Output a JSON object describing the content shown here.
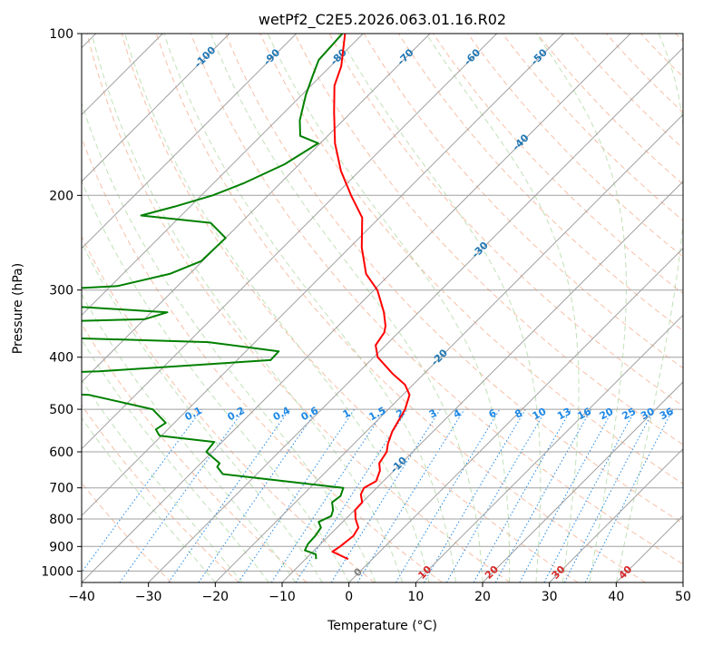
{
  "chart_data": {
    "type": "skew-t",
    "title": "wetPf2_C2E5.2026.063.01.16.R02",
    "xlabel": "Temperature (°C)",
    "ylabel": "Pressure (hPa)",
    "xlim": [
      -40,
      50
    ],
    "ylim_hpa": [
      1050,
      100
    ],
    "log_pressure_axis": true,
    "grid": true,
    "x_ticks": [
      -40,
      -30,
      -20,
      -10,
      0,
      10,
      20,
      30,
      40,
      50
    ],
    "x_tick_labels": [
      "−40",
      "−30",
      "−20",
      "−10",
      "0",
      "10",
      "20",
      "30",
      "40",
      "50"
    ],
    "y_ticks": [
      100,
      200,
      300,
      400,
      500,
      600,
      700,
      800,
      900,
      1000
    ],
    "y_tick_labels": [
      "100",
      "200",
      "300",
      "400",
      "500",
      "600",
      "700",
      "800",
      "900",
      "1000"
    ],
    "colors": {
      "temperature": "#ff0000",
      "dewpoint": "#008000",
      "isotherm": "#a0a0a0",
      "isobar": "#a0a0a0",
      "dry_adiabat": "#f4a582",
      "moist_adiabat": "#a6d49a",
      "mixing_ratio": "#1e88e5",
      "isotherm_label": "#1f77b4",
      "warm_isotherm_label": "#d62728",
      "zero_isotherm_label": "#808080",
      "frame": "#000000"
    },
    "isotherm_labels": [
      {
        "t": -100,
        "text": "-100"
      },
      {
        "t": -90,
        "text": "-90"
      },
      {
        "t": -80,
        "text": "-80"
      },
      {
        "t": -70,
        "text": "-70"
      },
      {
        "t": -60,
        "text": "-60"
      },
      {
        "t": -50,
        "text": "-50"
      },
      {
        "t": -40,
        "text": "-40"
      },
      {
        "t": -30,
        "text": "-30"
      },
      {
        "t": -20,
        "text": "-20"
      },
      {
        "t": -10,
        "text": "-10"
      },
      {
        "t": 0,
        "text": "0"
      },
      {
        "t": 10,
        "text": "10"
      },
      {
        "t": 20,
        "text": "20"
      },
      {
        "t": 30,
        "text": "30"
      },
      {
        "t": 40,
        "text": "40"
      }
    ],
    "mixing_ratio_labels": [
      {
        "w": 0.1,
        "text": "0.1"
      },
      {
        "w": 0.2,
        "text": "0.2"
      },
      {
        "w": 0.4,
        "text": "0.4"
      },
      {
        "w": 0.6,
        "text": "0.6"
      },
      {
        "w": 1,
        "text": "1"
      },
      {
        "w": 1.5,
        "text": "1.5"
      },
      {
        "w": 2,
        "text": "2"
      },
      {
        "w": 3,
        "text": "3"
      },
      {
        "w": 4,
        "text": "4"
      },
      {
        "w": 6,
        "text": "6"
      },
      {
        "w": 8,
        "text": "8"
      },
      {
        "w": 10,
        "text": "10"
      },
      {
        "w": 13,
        "text": "13"
      },
      {
        "w": 16,
        "text": "16"
      },
      {
        "w": 20,
        "text": "20"
      },
      {
        "w": 25,
        "text": "25"
      },
      {
        "w": 30,
        "text": "30"
      },
      {
        "w": 36,
        "text": "36"
      }
    ],
    "series": [
      {
        "key": "temperature",
        "points": [
          {
            "p": 950,
            "t": -3.6
          },
          {
            "p": 920,
            "t": -7.1
          },
          {
            "p": 900,
            "t": -6.7
          },
          {
            "p": 860,
            "t": -6.3
          },
          {
            "p": 830,
            "t": -6.8
          },
          {
            "p": 800,
            "t": -8.5
          },
          {
            "p": 770,
            "t": -9.9
          },
          {
            "p": 745,
            "t": -10.0
          },
          {
            "p": 720,
            "t": -11.4
          },
          {
            "p": 700,
            "t": -11.9
          },
          {
            "p": 680,
            "t": -11.1
          },
          {
            "p": 650,
            "t": -12.1
          },
          {
            "p": 630,
            "t": -13.3
          },
          {
            "p": 600,
            "t": -13.9
          },
          {
            "p": 580,
            "t": -14.9
          },
          {
            "p": 550,
            "t": -16.1
          },
          {
            "p": 500,
            "t": -17.5
          },
          {
            "p": 470,
            "t": -19.0
          },
          {
            "p": 450,
            "t": -21.2
          },
          {
            "p": 430,
            "t": -24.6
          },
          {
            "p": 400,
            "t": -29.4
          },
          {
            "p": 380,
            "t": -31.5
          },
          {
            "p": 360,
            "t": -32.1
          },
          {
            "p": 350,
            "t": -32.9
          },
          {
            "p": 330,
            "t": -35.2
          },
          {
            "p": 300,
            "t": -39.5
          },
          {
            "p": 280,
            "t": -43.6
          },
          {
            "p": 250,
            "t": -48.2
          },
          {
            "p": 220,
            "t": -52.6
          },
          {
            "p": 200,
            "t": -57.6
          },
          {
            "p": 180,
            "t": -62.8
          },
          {
            "p": 160,
            "t": -67.8
          },
          {
            "p": 140,
            "t": -72.6
          },
          {
            "p": 125,
            "t": -76.5
          },
          {
            "p": 115,
            "t": -78.4
          },
          {
            "p": 100,
            "t": -82.7
          }
        ]
      },
      {
        "key": "dewpoint",
        "points": [
          {
            "p": 950,
            "t": -8.4
          },
          {
            "p": 930,
            "t": -9.2
          },
          {
            "p": 915,
            "t": -11.4
          },
          {
            "p": 890,
            "t": -11.9
          },
          {
            "p": 860,
            "t": -12.0
          },
          {
            "p": 830,
            "t": -12.4
          },
          {
            "p": 810,
            "t": -13.6
          },
          {
            "p": 790,
            "t": -12.6
          },
          {
            "p": 770,
            "t": -13.2
          },
          {
            "p": 745,
            "t": -14.5
          },
          {
            "p": 725,
            "t": -14.2
          },
          {
            "p": 700,
            "t": -15.0
          },
          {
            "p": 660,
            "t": -35.1
          },
          {
            "p": 640,
            "t": -37.0
          },
          {
            "p": 630,
            "t": -37.2
          },
          {
            "p": 600,
            "t": -40.9
          },
          {
            "p": 575,
            "t": -41.2
          },
          {
            "p": 560,
            "t": -50.3
          },
          {
            "p": 545,
            "t": -51.8
          },
          {
            "p": 530,
            "t": -51.3
          },
          {
            "p": 500,
            "t": -55.3
          },
          {
            "p": 470,
            "t": -67.0
          },
          {
            "p": 460,
            "t": -85.0
          },
          {
            "p": 430,
            "t": -83.0
          },
          {
            "p": 425,
            "t": -69.0
          },
          {
            "p": 405,
            "t": -45.0
          },
          {
            "p": 390,
            "t": -45.1
          },
          {
            "p": 375,
            "t": -57.0
          },
          {
            "p": 365,
            "t": -90.0
          },
          {
            "p": 345,
            "t": -90.0
          },
          {
            "p": 340,
            "t": -70.0
          },
          {
            "p": 330,
            "t": -67.6
          },
          {
            "p": 320,
            "t": -86.0
          },
          {
            "p": 300,
            "t": -90.0
          },
          {
            "p": 295,
            "t": -79.0
          },
          {
            "p": 280,
            "t": -73.0
          },
          {
            "p": 265,
            "t": -70.2
          },
          {
            "p": 240,
            "t": -70.0
          },
          {
            "p": 225,
            "t": -74.5
          },
          {
            "p": 218,
            "t": -86.0
          },
          {
            "p": 210,
            "t": -82.4
          },
          {
            "p": 200,
            "t": -78.3
          },
          {
            "p": 190,
            "t": -75.5
          },
          {
            "p": 175,
            "t": -72.2
          },
          {
            "p": 160,
            "t": -70.3
          },
          {
            "p": 155,
            "t": -74.1
          },
          {
            "p": 145,
            "t": -76.5
          },
          {
            "p": 130,
            "t": -79.4
          },
          {
            "p": 120,
            "t": -81.2
          },
          {
            "p": 112,
            "t": -82.7
          },
          {
            "p": 100,
            "t": -83.1
          }
        ]
      }
    ]
  }
}
